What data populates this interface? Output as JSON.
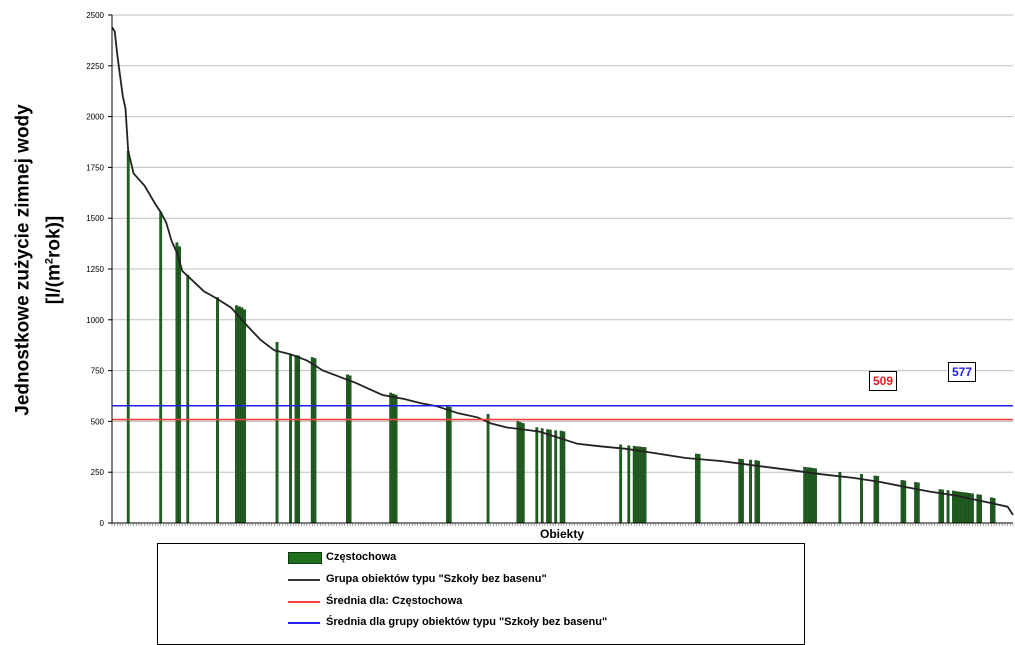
{
  "chart_data": {
    "type": "bar",
    "xlabel": "Obiekty",
    "ylabel_main": "Jednostkowe zużycie zimnej wody",
    "ylabel_unit_prefix": "[l/(m",
    "ylabel_unit_sup": "2",
    "ylabel_unit_suffix": "rok)]",
    "ylim": [
      0,
      2500
    ],
    "yticks": [
      "0",
      "250",
      "500",
      "750",
      "1000",
      "1250",
      "1500",
      "1750",
      "2000",
      "2250",
      "2500"
    ],
    "grid": true,
    "curve_points": [
      [
        0,
        2440
      ],
      [
        1,
        2420
      ],
      [
        2,
        2300
      ],
      [
        3,
        2200
      ],
      [
        4,
        2100
      ],
      [
        5,
        2040
      ],
      [
        6,
        1830
      ],
      [
        8,
        1720
      ],
      [
        12,
        1660
      ],
      [
        16,
        1570
      ],
      [
        18,
        1530
      ],
      [
        20,
        1480
      ],
      [
        22,
        1390
      ],
      [
        24,
        1330
      ],
      [
        26,
        1240
      ],
      [
        30,
        1190
      ],
      [
        34,
        1140
      ],
      [
        38,
        1110
      ],
      [
        44,
        1060
      ],
      [
        50,
        970
      ],
      [
        55,
        900
      ],
      [
        60,
        850
      ],
      [
        66,
        830
      ],
      [
        72,
        800
      ],
      [
        78,
        750
      ],
      [
        84,
        720
      ],
      [
        90,
        690
      ],
      [
        95,
        660
      ],
      [
        100,
        630
      ],
      [
        108,
        610
      ],
      [
        114,
        590
      ],
      [
        120,
        575
      ],
      [
        128,
        540
      ],
      [
        135,
        520
      ],
      [
        140,
        490
      ],
      [
        146,
        470
      ],
      [
        152,
        460
      ],
      [
        158,
        450
      ],
      [
        165,
        420
      ],
      [
        172,
        390
      ],
      [
        180,
        378
      ],
      [
        190,
        365
      ],
      [
        200,
        345
      ],
      [
        212,
        320
      ],
      [
        225,
        305
      ],
      [
        238,
        282
      ],
      [
        250,
        262
      ],
      [
        262,
        240
      ],
      [
        274,
        222
      ],
      [
        284,
        202
      ],
      [
        294,
        175
      ],
      [
        302,
        155
      ],
      [
        312,
        135
      ],
      [
        320,
        112
      ],
      [
        326,
        95
      ],
      [
        331,
        80
      ],
      [
        333,
        40
      ]
    ],
    "bars": [
      {
        "x": 6,
        "value": 1830
      },
      {
        "x": 18,
        "value": 1530
      },
      {
        "x": 24,
        "value": 1380
      },
      {
        "x": 25,
        "value": 1360
      },
      {
        "x": 28,
        "value": 1220
      },
      {
        "x": 39,
        "value": 1110
      },
      {
        "x": 46,
        "value": 1070
      },
      {
        "x": 47,
        "value": 1065
      },
      {
        "x": 48,
        "value": 1060
      },
      {
        "x": 49,
        "value": 1050
      },
      {
        "x": 61,
        "value": 890
      },
      {
        "x": 66,
        "value": 830
      },
      {
        "x": 68,
        "value": 825
      },
      {
        "x": 69,
        "value": 823
      },
      {
        "x": 74,
        "value": 815
      },
      {
        "x": 75,
        "value": 810
      },
      {
        "x": 87,
        "value": 730
      },
      {
        "x": 88,
        "value": 725
      },
      {
        "x": 103,
        "value": 640
      },
      {
        "x": 104,
        "value": 635
      },
      {
        "x": 105,
        "value": 630
      },
      {
        "x": 124,
        "value": 575
      },
      {
        "x": 125,
        "value": 570
      },
      {
        "x": 139,
        "value": 535
      },
      {
        "x": 150,
        "value": 500
      },
      {
        "x": 151,
        "value": 495
      },
      {
        "x": 152,
        "value": 490
      },
      {
        "x": 157,
        "value": 470
      },
      {
        "x": 159,
        "value": 465
      },
      {
        "x": 161,
        "value": 460
      },
      {
        "x": 162,
        "value": 458
      },
      {
        "x": 164,
        "value": 455
      },
      {
        "x": 166,
        "value": 453
      },
      {
        "x": 167,
        "value": 450
      },
      {
        "x": 188,
        "value": 385
      },
      {
        "x": 191,
        "value": 380
      },
      {
        "x": 193,
        "value": 378
      },
      {
        "x": 194,
        "value": 376
      },
      {
        "x": 195,
        "value": 375
      },
      {
        "x": 196,
        "value": 373
      },
      {
        "x": 197,
        "value": 372
      },
      {
        "x": 216,
        "value": 340
      },
      {
        "x": 217,
        "value": 338
      },
      {
        "x": 232,
        "value": 315
      },
      {
        "x": 233,
        "value": 313
      },
      {
        "x": 236,
        "value": 310
      },
      {
        "x": 238,
        "value": 308
      },
      {
        "x": 239,
        "value": 305
      },
      {
        "x": 256,
        "value": 275
      },
      {
        "x": 257,
        "value": 273
      },
      {
        "x": 258,
        "value": 272
      },
      {
        "x": 259,
        "value": 270
      },
      {
        "x": 260,
        "value": 268
      },
      {
        "x": 269,
        "value": 250
      },
      {
        "x": 277,
        "value": 240
      },
      {
        "x": 282,
        "value": 232
      },
      {
        "x": 283,
        "value": 230
      },
      {
        "x": 292,
        "value": 210
      },
      {
        "x": 293,
        "value": 208
      },
      {
        "x": 297,
        "value": 200
      },
      {
        "x": 298,
        "value": 198
      },
      {
        "x": 306,
        "value": 165
      },
      {
        "x": 307,
        "value": 163
      },
      {
        "x": 309,
        "value": 160
      },
      {
        "x": 311,
        "value": 158
      },
      {
        "x": 312,
        "value": 155
      },
      {
        "x": 313,
        "value": 153
      },
      {
        "x": 314,
        "value": 151
      },
      {
        "x": 315,
        "value": 150
      },
      {
        "x": 316,
        "value": 148
      },
      {
        "x": 317,
        "value": 146
      },
      {
        "x": 318,
        "value": 144
      },
      {
        "x": 320,
        "value": 140
      },
      {
        "x": 321,
        "value": 138
      },
      {
        "x": 325,
        "value": 125
      },
      {
        "x": 326,
        "value": 122
      }
    ],
    "x_count": 333,
    "avg_local": {
      "value": 509,
      "label": "509",
      "color": "#ff4040"
    },
    "avg_group": {
      "value": 577,
      "label": "577",
      "color": "#2020ff"
    },
    "bar_color": "#1f5f1f",
    "curve_color": "#222222",
    "legend": [
      {
        "label": "Częstochowa",
        "kind": "bar",
        "color": "#1f6f1f"
      },
      {
        "label": "Grupa obiektów typu \"Szkoły bez basenu\"",
        "kind": "line",
        "color": "#333333"
      },
      {
        "label": "Średnia dla: Częstochowa",
        "kind": "line",
        "color": "#ff4040"
      },
      {
        "label": "Średnia dla grupy obiektów typu \"Szkoły bez basenu\"",
        "kind": "line",
        "color": "#2020ff"
      }
    ]
  }
}
